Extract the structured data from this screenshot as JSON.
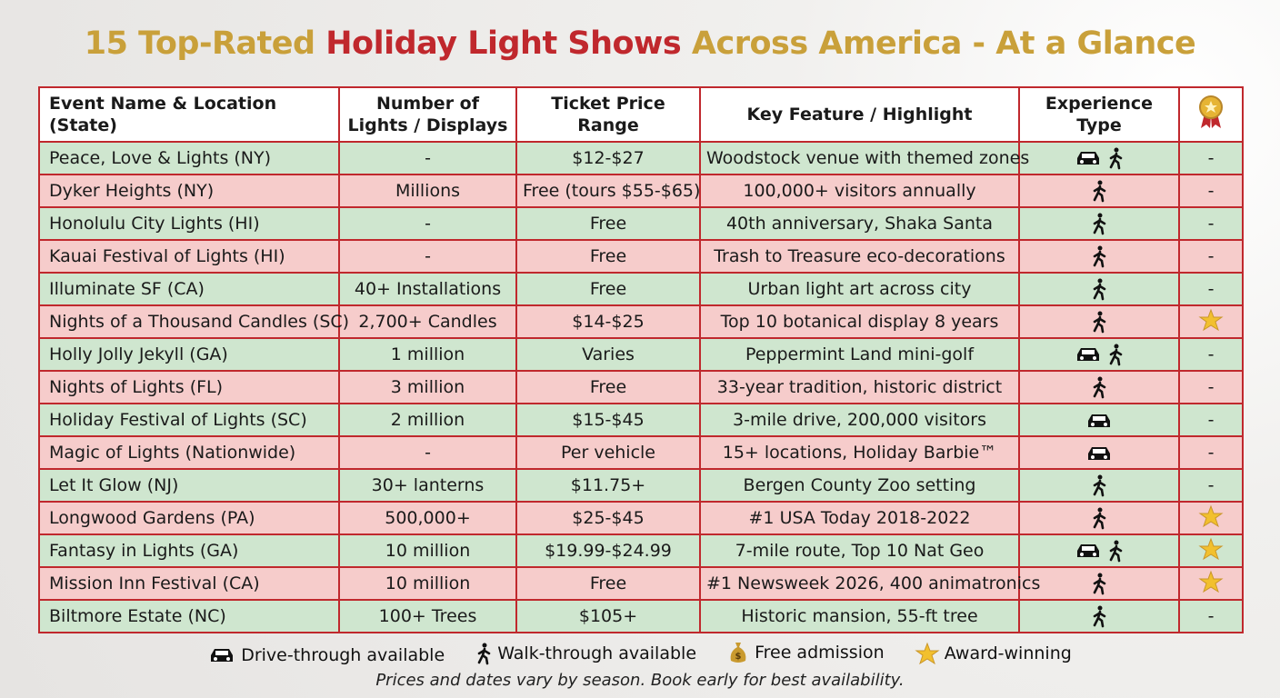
{
  "header": {
    "title_parts": [
      "15 Top-Rated",
      "Holiday Light Shows",
      "Across America - At a Glance"
    ]
  },
  "table": {
    "columns": [
      "Event Name & Location (State)",
      "Number of Lights / Displays",
      "Ticket Price Range",
      "Key Feature / Highlight",
      "Experience Type"
    ],
    "rows": [
      [
        "Peace, Love & Lights (NY)",
        "-",
        "$12-$27",
        "Woodstock venue with themed zones",
        "-"
      ],
      [
        "Dyker Heights (NY)",
        "Millions",
        "Free (tours $55-$65)",
        "100,000+ visitors annually",
        "-"
      ],
      [
        "Honolulu City Lights (HI)",
        "-",
        "Free",
        "40th anniversary, Shaka Santa",
        "-"
      ],
      [
        "Kauai Festival of Lights (HI)",
        "-",
        "Free",
        "Trash to Treasure eco-decorations",
        "-"
      ],
      [
        "Illuminate SF (CA)",
        "40+ Installations",
        "Free",
        "Urban light art across city",
        "-"
      ],
      [
        "Nights of a Thousand Candles (SC)",
        "2,700+ Candles",
        "$14-$25",
        "Top 10 botanical display 8 years",
        null
      ],
      [
        "Holly Jolly Jekyll (GA)",
        "1 million",
        "Varies",
        "Peppermint Land mini-golf",
        "-"
      ],
      [
        "Nights of Lights (FL)",
        "3 million",
        "Free",
        "33-year tradition, historic district",
        "-"
      ],
      [
        "Holiday Festival of Lights (SC)",
        "2 million",
        "$15-$45",
        "3-mile drive, 200,000 visitors",
        "-"
      ],
      [
        "Magic of Lights (Nationwide)",
        "-",
        "Per vehicle",
        "15+ locations, Holiday Barbie™",
        "-"
      ],
      [
        "Let It Glow (NJ)",
        "30+ lanterns",
        "$11.75+",
        "Bergen County Zoo setting",
        "-"
      ],
      [
        "Longwood Gardens (PA)",
        "500,000+",
        "$25-$45",
        "#1 USA Today 2018-2022",
        null
      ],
      [
        "Fantasy in Lights (GA)",
        "10 million",
        "$19.99-$24.99",
        "7-mile route, Top 10 Nat Geo",
        null
      ],
      [
        "Mission Inn Festival (CA)",
        "10 million",
        "Free",
        "#1 Newsweek 2026, 400 animatronics",
        null
      ],
      [
        "Biltmore Estate (NC)",
        "100+ Trees",
        "$105+",
        "Historic mansion, 55-ft tree",
        "-"
      ]
    ]
  },
  "legend": [
    "Drive-through available",
    "Walk-through available",
    "Free admission",
    "Award-winning"
  ],
  "footnote": "Prices and dates vary by season. Book early for best availability."
}
